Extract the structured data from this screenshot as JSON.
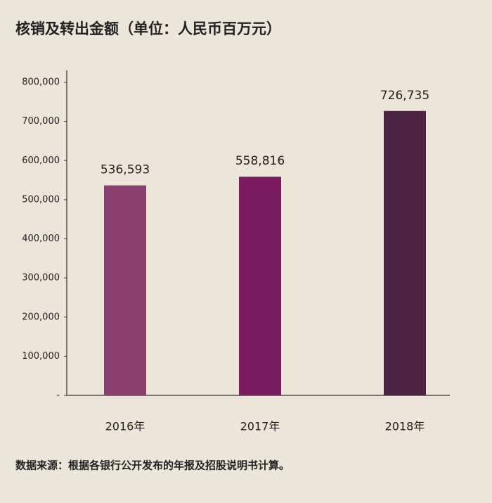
{
  "chart_data": {
    "type": "bar",
    "title": "核销及转出金额（单位：人民币百万元）",
    "categories": [
      "2016年",
      "2017年",
      "2018年"
    ],
    "values": [
      536593,
      558816,
      726735
    ],
    "value_labels": [
      "536,593",
      "558,816",
      "726,735"
    ],
    "colors": [
      "#8b3f70",
      "#7a1d5f",
      "#4a2442"
    ],
    "ylim": [
      0,
      800000
    ],
    "yticks": [
      {
        "value": 0,
        "label": "-"
      },
      {
        "value": 100000,
        "label": "100,000"
      },
      {
        "value": 200000,
        "label": "200,000"
      },
      {
        "value": 300000,
        "label": "300,000"
      },
      {
        "value": 400000,
        "label": "400,000"
      },
      {
        "value": 500000,
        "label": "500,000"
      },
      {
        "value": 600000,
        "label": "600,000"
      },
      {
        "value": 700000,
        "label": "700,000"
      },
      {
        "value": 800000,
        "label": "800,000"
      }
    ],
    "grid": false,
    "source": "数据来源：根据各银行公开发布的年报及招股说明书计算。"
  }
}
